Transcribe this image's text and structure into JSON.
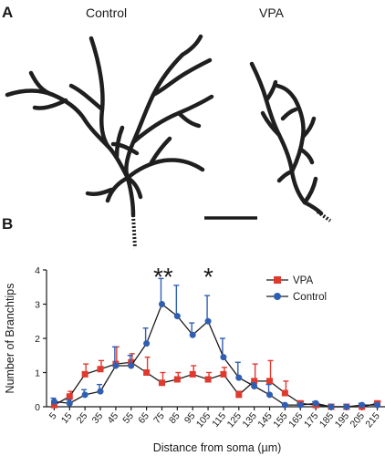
{
  "panel_a": {
    "letter": "A",
    "left_label": "Control",
    "right_label": "VPA"
  },
  "panel_b": {
    "letter": "B"
  },
  "significance": [
    "**",
    "*"
  ],
  "colors": {
    "vpa": "#e03a2f",
    "control": "#2f5fb3",
    "line": "#1a1a1a"
  },
  "chart_data": {
    "type": "line",
    "xlabel": "Distance from soma (µm)",
    "ylabel": "Number of Branchtips",
    "ylim": [
      0,
      4
    ],
    "yticks": [
      "0",
      "1",
      "2",
      "3",
      "4"
    ],
    "categories": [
      "5",
      "15",
      "25",
      "35",
      "45",
      "55",
      "65",
      "75",
      "85",
      "95",
      "105",
      "115",
      "125",
      "135",
      "145",
      "155",
      "165",
      "175",
      "185",
      "195",
      "205",
      "215"
    ],
    "legend_position": "top-right",
    "series": [
      {
        "name": "VPA",
        "color": "#e03a2f",
        "marker": "square",
        "values": [
          0.05,
          0.3,
          0.95,
          1.1,
          1.25,
          1.3,
          1.0,
          0.7,
          0.8,
          0.95,
          0.8,
          0.95,
          0.35,
          0.75,
          0.75,
          0.4,
          0.1,
          0.05,
          0.0,
          0.0,
          0.0,
          0.1
        ],
        "errors": [
          0.1,
          0.15,
          0.3,
          0.25,
          0.5,
          0.25,
          0.45,
          0.3,
          0.2,
          0.25,
          0.2,
          0.2,
          0.1,
          0.5,
          0.6,
          0.35,
          0.05,
          0.05,
          0.0,
          0.0,
          0.0,
          0.05
        ]
      },
      {
        "name": "Control",
        "color": "#2f5fb3",
        "marker": "circle",
        "values": [
          0.15,
          0.1,
          0.35,
          0.45,
          1.2,
          1.2,
          1.85,
          3.0,
          2.65,
          2.1,
          2.5,
          1.45,
          0.85,
          0.6,
          0.35,
          0.05,
          0.05,
          0.1,
          0.0,
          0.0,
          0.05,
          0.05
        ],
        "errors": [
          0.1,
          0.1,
          0.15,
          0.2,
          0.55,
          0.3,
          0.45,
          0.75,
          0.9,
          0.35,
          0.75,
          0.55,
          0.45,
          0.1,
          0.3,
          0.05,
          0.05,
          0.05,
          0.0,
          0.0,
          0.05,
          0.05
        ]
      }
    ]
  }
}
